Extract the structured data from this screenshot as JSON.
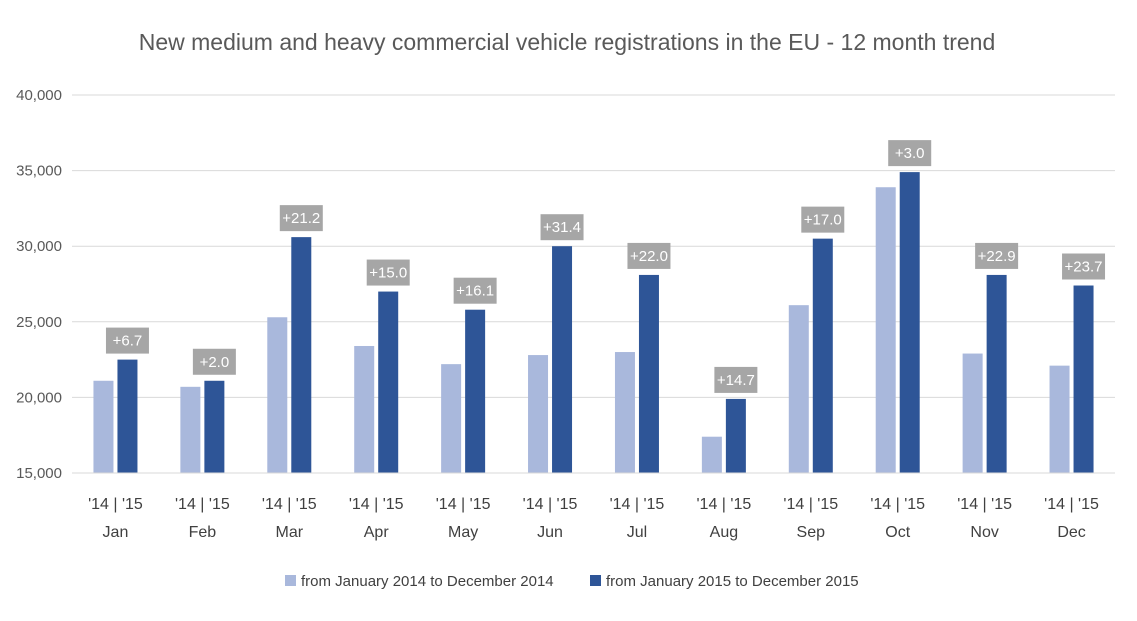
{
  "chart_data": {
    "type": "bar",
    "title": "New medium and heavy commercial vehicle registrations in the EU - 12 month trend",
    "xlabel": "",
    "ylabel": "",
    "ylim": [
      15000,
      40000
    ],
    "yticks": [
      "15,000",
      "20,000",
      "25,000",
      "30,000",
      "35,000",
      "40,000"
    ],
    "ytick_values": [
      15000,
      20000,
      25000,
      30000,
      35000,
      40000
    ],
    "grid": true,
    "legend": "bottom",
    "bar_sublabel": "'14 | '15",
    "categories": [
      "Jan",
      "Feb",
      "Mar",
      "Apr",
      "May",
      "Jun",
      "Jul",
      "Aug",
      "Sep",
      "Oct",
      "Nov",
      "Dec"
    ],
    "series": [
      {
        "name": "from January 2014 to December 2014",
        "color": "#A9B8DC",
        "values": [
          21100,
          20700,
          25300,
          23400,
          22200,
          22800,
          23000,
          17400,
          26100,
          33900,
          22900,
          22100
        ]
      },
      {
        "name": "from January 2015 to December 2015",
        "color": "#2E5597",
        "values": [
          22500,
          21100,
          30600,
          27000,
          25800,
          30000,
          28100,
          19900,
          30500,
          34900,
          28100,
          27400
        ]
      }
    ],
    "change_labels": [
      "+6.7",
      "+2.0",
      "+21.2",
      "+15.0",
      "+16.1",
      "+31.4",
      "+22.0",
      "+14.7",
      "+17.0",
      "+3.0",
      "+22.9",
      "+23.7"
    ],
    "change_label_color": "#A6A6A6"
  }
}
